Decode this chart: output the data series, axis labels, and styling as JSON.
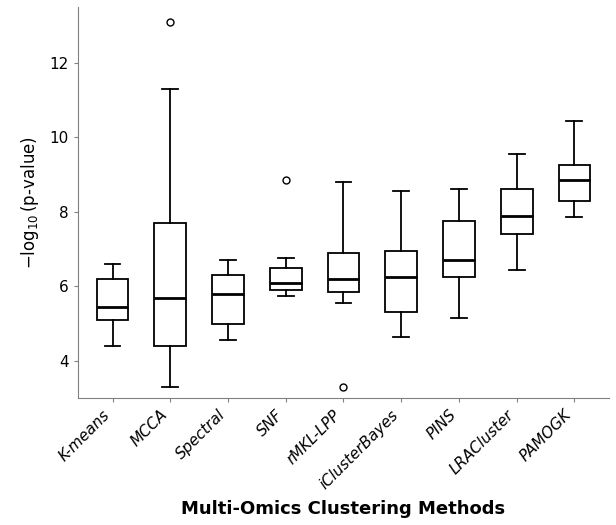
{
  "categories": [
    "K-means",
    "MCCA",
    "Spectral",
    "SNF",
    "rMKL-LPP",
    "iClusterBayes",
    "PINS",
    "LRACluster",
    "PAMOGK"
  ],
  "xlabel": "Multi-Omics Clustering Methods",
  "ylabel": "$-\\log_{10}(\\mathrm{p\\text{-}value})$",
  "ylim": [
    3.0,
    13.5
  ],
  "yticks": [
    4,
    6,
    8,
    10,
    12
  ],
  "boxes": [
    {
      "med": 5.45,
      "q1": 5.1,
      "q3": 6.2,
      "whislo": 4.4,
      "whishi": 6.6,
      "fliers": []
    },
    {
      "med": 5.7,
      "q1": 4.4,
      "q3": 7.7,
      "whislo": 3.3,
      "whishi": 11.3,
      "fliers": [
        13.1
      ]
    },
    {
      "med": 5.8,
      "q1": 5.0,
      "q3": 6.3,
      "whislo": 4.55,
      "whishi": 6.7,
      "fliers": []
    },
    {
      "med": 6.1,
      "q1": 5.9,
      "q3": 6.5,
      "whislo": 5.75,
      "whishi": 6.75,
      "fliers": [
        8.85
      ]
    },
    {
      "med": 6.2,
      "q1": 5.85,
      "q3": 6.9,
      "whislo": 5.55,
      "whishi": 8.8,
      "fliers": [
        3.3
      ]
    },
    {
      "med": 6.25,
      "q1": 5.3,
      "q3": 6.95,
      "whislo": 4.65,
      "whishi": 8.55,
      "fliers": []
    },
    {
      "med": 6.7,
      "q1": 6.25,
      "q3": 7.75,
      "whislo": 5.15,
      "whishi": 8.6,
      "fliers": []
    },
    {
      "med": 7.9,
      "q1": 7.4,
      "q3": 8.6,
      "whislo": 6.45,
      "whishi": 9.55,
      "fliers": []
    },
    {
      "med": 8.85,
      "q1": 8.3,
      "q3": 9.25,
      "whislo": 7.85,
      "whishi": 10.45,
      "fliers": []
    }
  ],
  "box_facecolor": "#ffffff",
  "box_edgecolor": "#000000",
  "median_color": "#000000",
  "whisker_color": "#000000",
  "flier_marker": "o",
  "flier_color": "#000000",
  "background_color": "#ffffff",
  "xlabel_fontsize": 13,
  "ylabel_fontsize": 12,
  "tick_fontsize": 11,
  "linewidth": 1.3,
  "box_width": 0.55
}
